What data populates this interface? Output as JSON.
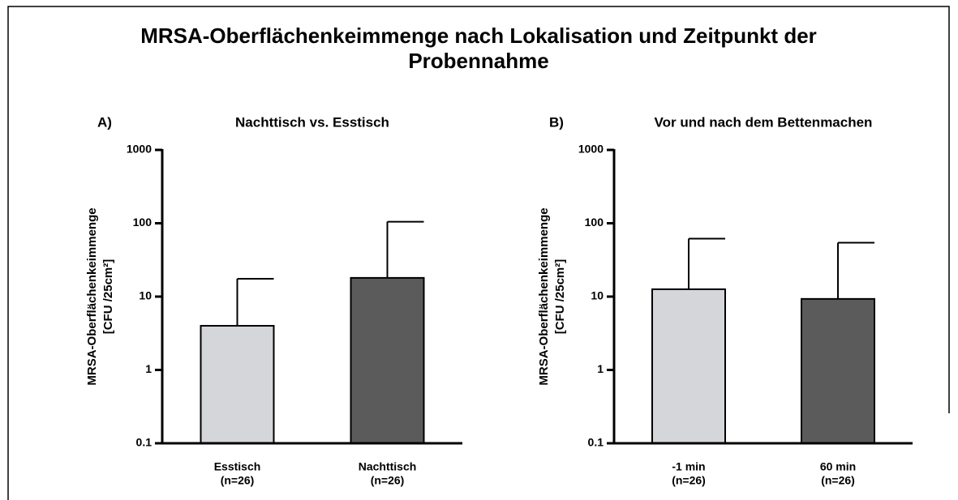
{
  "title": [
    "MRSA-Oberflächenkeimmenge nach Lokalisation und Zeitpunkt der",
    "Probennahme"
  ],
  "chart_data": [
    {
      "type": "bar",
      "panel": "A)",
      "title": "Nachttisch vs. Esstisch",
      "ylabel": [
        "MRSA-Oberflächenkeimmenge",
        "[CFU /25cm²]"
      ],
      "categories": [
        [
          "Esstisch",
          "(n=26)"
        ],
        [
          "Nachttisch",
          "(n=26)"
        ]
      ],
      "values": [
        4,
        18
      ],
      "errors": [
        13.5,
        87
      ],
      "colors": [
        "#d4d6d9",
        "#5b5b5b"
      ],
      "log_scale": true,
      "ylim": [
        0.1,
        1000
      ],
      "yticks": [
        1000,
        100,
        10,
        1,
        0.1
      ]
    },
    {
      "type": "bar",
      "panel": "B)",
      "title": "Vor und nach dem Bettenmachen",
      "ylabel": [
        "MRSA-Oberflächenkeimmenge",
        "[CFU /25cm²]"
      ],
      "categories": [
        [
          "-1 min",
          "(n=26)"
        ],
        [
          "60 min",
          "(n=26)"
        ]
      ],
      "values": [
        12.6,
        9.3
      ],
      "errors": [
        49,
        45
      ],
      "colors": [
        "#d4d6d9",
        "#5b5b5b"
      ],
      "log_scale": true,
      "ylim": [
        0.1,
        1000
      ],
      "yticks": [
        1000,
        100,
        10,
        1,
        0.1
      ]
    }
  ]
}
